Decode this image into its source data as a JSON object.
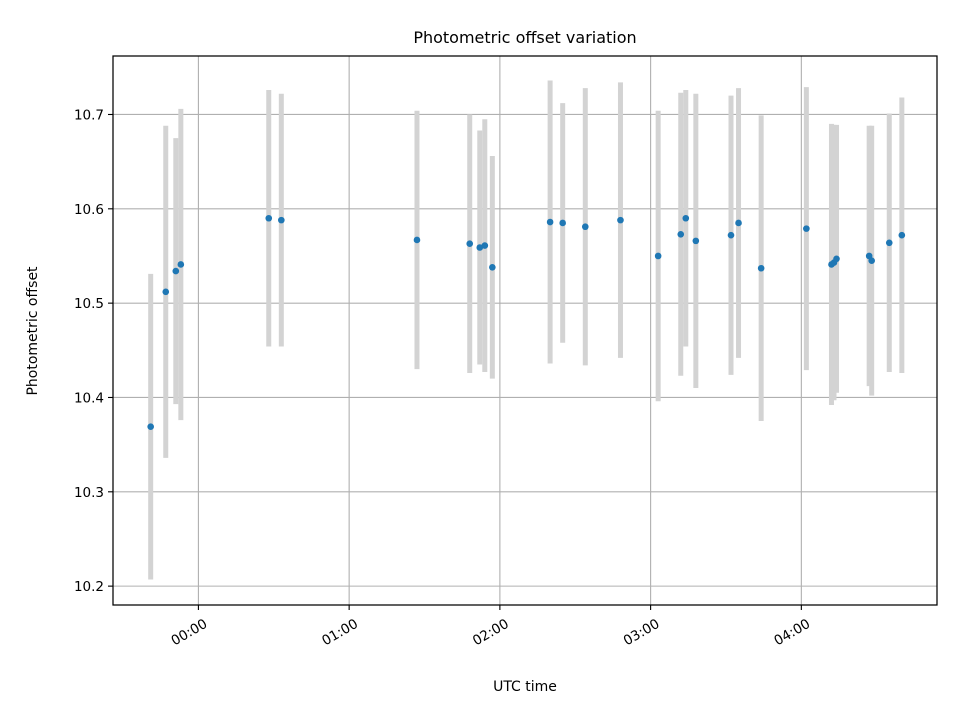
{
  "chart_data": {
    "type": "scatter",
    "title": "Photometric offset variation",
    "xlabel": "UTC time",
    "ylabel": "Photometric offset",
    "grid": true,
    "x_unit": "UTC time (HH:MM)",
    "x_ticks": [
      "00:00",
      "01:00",
      "02:00",
      "03:00",
      "04:00"
    ],
    "y_ticks": [
      10.2,
      10.3,
      10.4,
      10.5,
      10.6,
      10.7
    ],
    "xlim": [
      "23:26",
      "04:54"
    ],
    "ylim": [
      10.18,
      10.762
    ],
    "points": [
      {
        "x": "23:41",
        "y": 10.369,
        "err": 0.162
      },
      {
        "x": "23:47",
        "y": 10.512,
        "err": 0.176
      },
      {
        "x": "23:51",
        "y": 10.534,
        "err": 0.141
      },
      {
        "x": "23:53",
        "y": 10.541,
        "err": 0.165
      },
      {
        "x": "00:28",
        "y": 10.59,
        "err": 0.136
      },
      {
        "x": "00:33",
        "y": 10.588,
        "err": 0.134
      },
      {
        "x": "01:27",
        "y": 10.567,
        "err": 0.137
      },
      {
        "x": "01:48",
        "y": 10.563,
        "err": 0.137
      },
      {
        "x": "01:52",
        "y": 10.559,
        "err": 0.124
      },
      {
        "x": "01:54",
        "y": 10.561,
        "err": 0.134
      },
      {
        "x": "01:57",
        "y": 10.538,
        "err": 0.118
      },
      {
        "x": "02:20",
        "y": 10.586,
        "err": 0.15
      },
      {
        "x": "02:25",
        "y": 10.585,
        "err": 0.127
      },
      {
        "x": "02:34",
        "y": 10.581,
        "err": 0.147
      },
      {
        "x": "02:48",
        "y": 10.588,
        "err": 0.146
      },
      {
        "x": "03:03",
        "y": 10.55,
        "err": 0.154
      },
      {
        "x": "03:12",
        "y": 10.573,
        "err": 0.15
      },
      {
        "x": "03:14",
        "y": 10.59,
        "err": 0.136
      },
      {
        "x": "03:18",
        "y": 10.566,
        "err": 0.156
      },
      {
        "x": "03:32",
        "y": 10.572,
        "err": 0.148
      },
      {
        "x": "03:35",
        "y": 10.585,
        "err": 0.143
      },
      {
        "x": "03:44",
        "y": 10.537,
        "err": 0.162
      },
      {
        "x": "04:02",
        "y": 10.579,
        "err": 0.15
      },
      {
        "x": "04:12",
        "y": 10.541,
        "err": 0.149
      },
      {
        "x": "04:13",
        "y": 10.543,
        "err": 0.146
      },
      {
        "x": "04:14",
        "y": 10.547,
        "err": 0.142
      },
      {
        "x": "04:27",
        "y": 10.55,
        "err": 0.138
      },
      {
        "x": "04:28",
        "y": 10.545,
        "err": 0.143
      },
      {
        "x": "04:35",
        "y": 10.564,
        "err": 0.137
      },
      {
        "x": "04:40",
        "y": 10.572,
        "err": 0.146
      }
    ],
    "colors": {
      "marker": "#1f77b4",
      "errorbar": "#d3d3d3",
      "grid": "#b0b0b0",
      "axes": "#000000"
    }
  }
}
